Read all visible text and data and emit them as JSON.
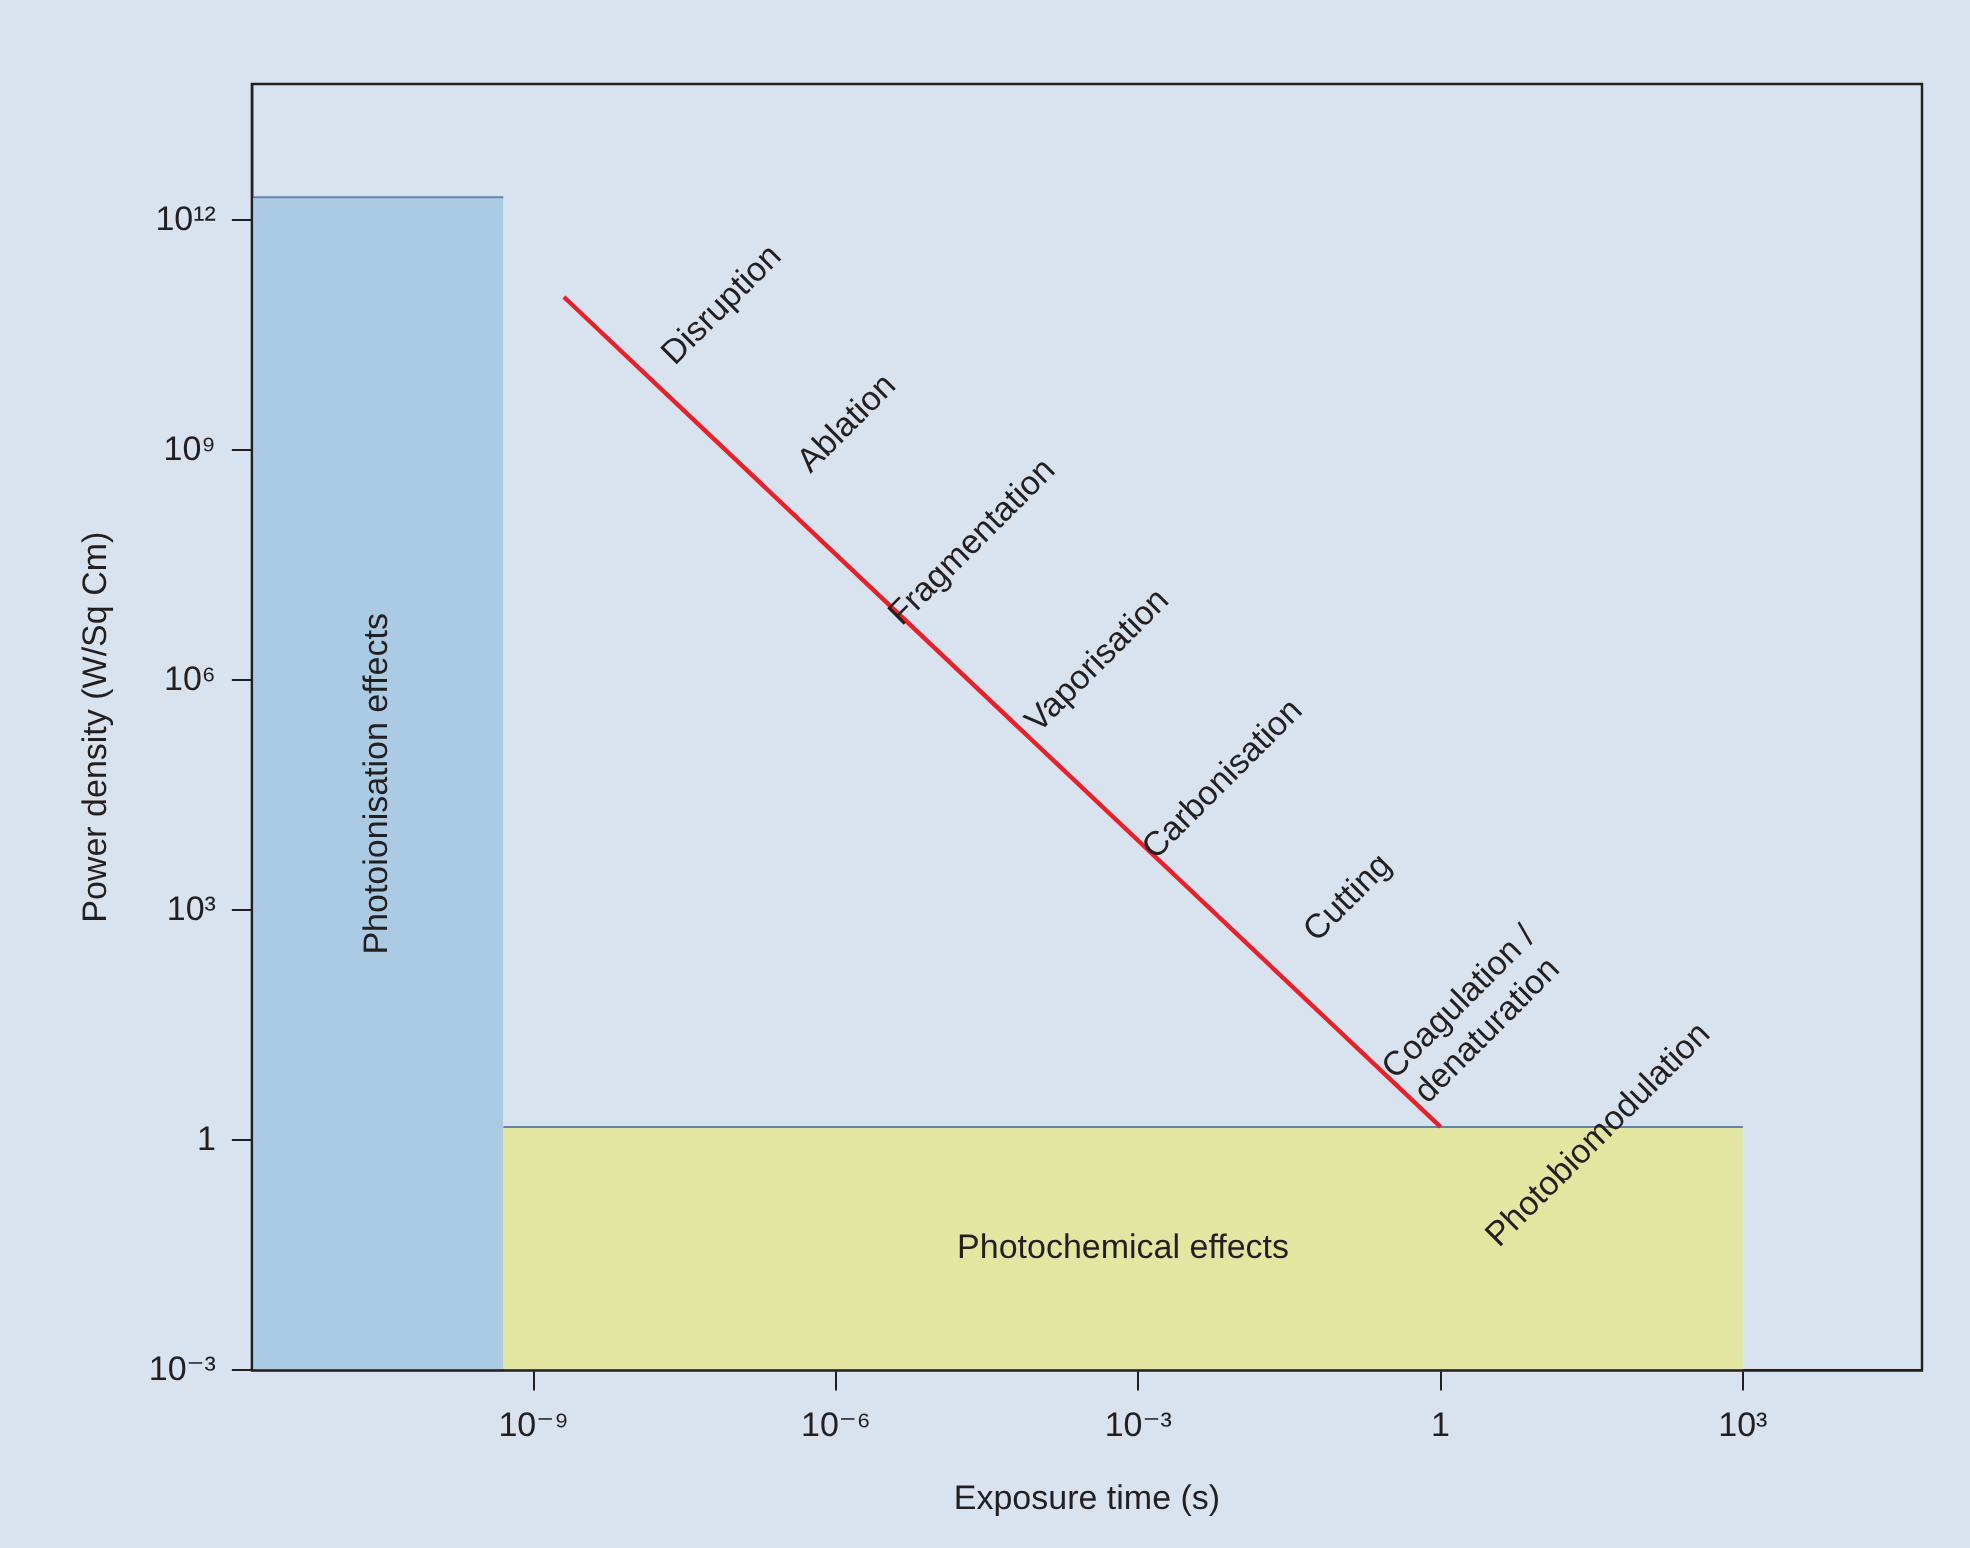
{
  "chart_data": {
    "type": "line",
    "xlabel": "Exposure time (s)",
    "ylabel": "Power density (W/Sq Cm)",
    "log": "xy",
    "grid": false,
    "legend": false,
    "marker": "none",
    "xlim": [
      1.6e-12,
      60000.0
    ],
    "ylim": [
      0.001,
      60000000000000.0
    ],
    "xticks": [
      {
        "value": 1e-09,
        "label": "10⁻⁹"
      },
      {
        "value": 1e-06,
        "label": "10⁻⁶"
      },
      {
        "value": 0.001,
        "label": "10⁻³"
      },
      1,
      {
        "value": 1000,
        "label": "10³"
      }
    ],
    "yticks": [
      {
        "value": 0.001,
        "label": "10⁻³"
      },
      1,
      {
        "value": 1000,
        "label": "10³"
      },
      {
        "value": 1000000.0,
        "label": "10⁶"
      },
      {
        "value": 1000000000.0,
        "label": "10⁹"
      },
      {
        "value": 1000000000000.0,
        "label": "10¹²"
      }
    ],
    "series": [
      {
        "name": "Photoionisation effects",
        "type": "area",
        "color": "#abcbe5",
        "x": [
          1.6e-12,
          5e-10
        ],
        "values": [
          2000000000000.0,
          2000000000000.0
        ]
      },
      {
        "name": "Photochemical effects",
        "type": "area",
        "color": "#e2e6a0",
        "x": [
          5e-10,
          1000
        ],
        "values": [
          1.5,
          1.5
        ]
      },
      {
        "color": "#e8202a",
        "x": [
          2e-09,
          1
        ],
        "values": [
          100000000000.0,
          1.5
        ]
      }
    ],
    "annotations": [
      "Disruption",
      "Ablation",
      "Fragmentation",
      "Vaporisation",
      "Carbonisation",
      "Cutting",
      "Coagulation / denaturation",
      "Photobiomodulation"
    ]
  }
}
